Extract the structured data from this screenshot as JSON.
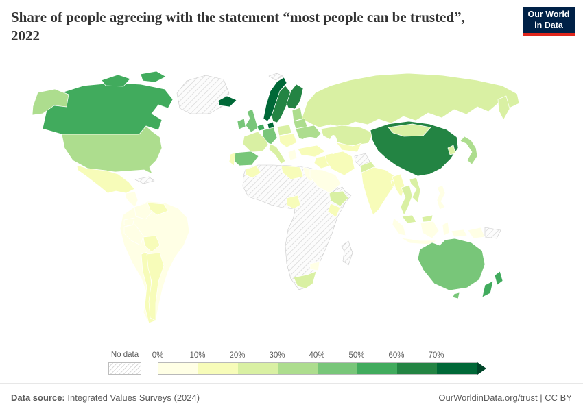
{
  "header": {
    "title": "Share of people agreeing with the statement “most people can be trusted”, 2022",
    "logo": {
      "line1": "Our World",
      "line2": "in Data",
      "bg": "#002147",
      "accent": "#e0261c"
    }
  },
  "legend": {
    "no_data_label": "No data",
    "ticks": [
      "0%",
      "10%",
      "20%",
      "30%",
      "40%",
      "50%",
      "60%",
      "70%"
    ],
    "arrow_color": "#004529"
  },
  "footer": {
    "datasource_label": "Data source:",
    "datasource_value": " Integrated Values Surveys (2024)",
    "right_text": "OurWorldinData.org/trust | CC BY"
  },
  "chart_data": {
    "type": "choropleth_map",
    "title": "Share of people agreeing with the statement “most people can be trusted”, 2022",
    "unit": "%",
    "bin_size": 10,
    "bin_colors": [
      "#ffffe5",
      "#f7fcb9",
      "#d9f0a3",
      "#addd8e",
      "#78c679",
      "#41ab5d",
      "#238443",
      "#006837"
    ],
    "no_data_style": "hatched",
    "countries": [
      {
        "id": "canada",
        "name": "Canada",
        "value": 53
      },
      {
        "id": "usa",
        "name": "United States",
        "value": 37
      },
      {
        "id": "mexico",
        "name": "Mexico",
        "value": 11
      },
      {
        "id": "guatemala",
        "name": "Guatemala",
        "value": 5
      },
      {
        "id": "colombia",
        "name": "Colombia",
        "value": 5
      },
      {
        "id": "venezuela",
        "name": "Venezuela",
        "value": 14
      },
      {
        "id": "ecuador",
        "name": "Ecuador",
        "value": 7
      },
      {
        "id": "peru",
        "name": "Peru",
        "value": 4
      },
      {
        "id": "brazil",
        "name": "Brazil",
        "value": 7
      },
      {
        "id": "bolivia",
        "name": "Bolivia",
        "value": 13
      },
      {
        "id": "chile",
        "name": "Chile",
        "value": 13
      },
      {
        "id": "argentina",
        "name": "Argentina",
        "value": 18
      },
      {
        "id": "iceland",
        "name": "Iceland",
        "value": 73
      },
      {
        "id": "ireland",
        "name": "Ireland",
        "value": 46
      },
      {
        "id": "uk",
        "name": "United Kingdom",
        "value": 40
      },
      {
        "id": "norway",
        "name": "Norway",
        "value": 72
      },
      {
        "id": "sweden",
        "name": "Sweden",
        "value": 63
      },
      {
        "id": "finland",
        "name": "Finland",
        "value": 68
      },
      {
        "id": "denmark",
        "name": "Denmark",
        "value": 74
      },
      {
        "id": "netherlands",
        "name": "Netherlands",
        "value": 58
      },
      {
        "id": "germany",
        "name": "Germany",
        "value": 45
      },
      {
        "id": "france",
        "name": "France",
        "value": 26
      },
      {
        "id": "spain",
        "name": "Spain",
        "value": 41
      },
      {
        "id": "portugal",
        "name": "Portugal",
        "value": 19
      },
      {
        "id": "italy",
        "name": "Italy",
        "value": 27
      },
      {
        "id": "poland",
        "name": "Poland",
        "value": 24
      },
      {
        "id": "lithuania",
        "name": "Lithuania",
        "value": 30
      },
      {
        "id": "belarus",
        "name": "Belarus",
        "value": 33
      },
      {
        "id": "ukraine",
        "name": "Ukraine",
        "value": 30
      },
      {
        "id": "romania",
        "name": "Romania",
        "value": 12
      },
      {
        "id": "greece",
        "name": "Greece",
        "value": 8
      },
      {
        "id": "russia",
        "name": "Russia",
        "value": 23
      },
      {
        "id": "kazakhstan",
        "name": "Kazakhstan",
        "value": 25
      },
      {
        "id": "uzbekistan",
        "name": "Uzbekistan",
        "value": 14
      },
      {
        "id": "turkey",
        "name": "Turkey",
        "value": 14
      },
      {
        "id": "iran",
        "name": "Iran",
        "value": 15
      },
      {
        "id": "iraq",
        "name": "Iraq",
        "value": 10
      },
      {
        "id": "saudi-arabia",
        "name": "Saudi Arabia",
        "value": 8
      },
      {
        "id": "egypt",
        "name": "Egypt",
        "value": 7
      },
      {
        "id": "morocco",
        "name": "Morocco",
        "value": 13
      },
      {
        "id": "libya",
        "name": "Libya",
        "value": 11
      },
      {
        "id": "nigeria",
        "name": "Nigeria",
        "value": 12
      },
      {
        "id": "ethiopia",
        "name": "Ethiopia",
        "value": 21
      },
      {
        "id": "kenya",
        "name": "Kenya",
        "value": 12
      },
      {
        "id": "zimbabwe",
        "name": "Zimbabwe",
        "value": 2
      },
      {
        "id": "south-africa",
        "name": "South Africa",
        "value": 23
      },
      {
        "id": "pakistan",
        "name": "Pakistan",
        "value": 23
      },
      {
        "id": "india",
        "name": "India",
        "value": 17
      },
      {
        "id": "bangladesh",
        "name": "Bangladesh",
        "value": 14
      },
      {
        "id": "china",
        "name": "China",
        "value": 63
      },
      {
        "id": "mongolia",
        "name": "Mongolia",
        "value": 21
      },
      {
        "id": "south-korea",
        "name": "South Korea",
        "value": 27
      },
      {
        "id": "japan",
        "name": "Japan",
        "value": 34
      },
      {
        "id": "myanmar",
        "name": "Myanmar",
        "value": 19
      },
      {
        "id": "thailand",
        "name": "Thailand",
        "value": 29
      },
      {
        "id": "vietnam",
        "name": "Vietnam",
        "value": 28
      },
      {
        "id": "malaysia",
        "name": "Malaysia",
        "value": 20
      },
      {
        "id": "indonesia",
        "name": "Indonesia",
        "value": 5
      },
      {
        "id": "philippines",
        "name": "Philippines",
        "value": 5
      },
      {
        "id": "australia",
        "name": "Australia",
        "value": 48
      },
      {
        "id": "new-zealand",
        "name": "New Zealand",
        "value": 57
      }
    ]
  }
}
